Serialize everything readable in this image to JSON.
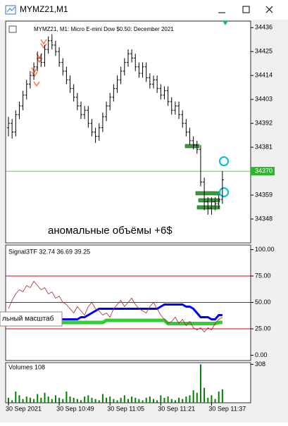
{
  "window_title": "MYMZ21,M1",
  "tooltip": "льный масштаб",
  "chart_data": [
    {
      "type": "ohlc",
      "title": "MYMZ21, M1:  Micro E-mini Dow $0.50: December 2021",
      "annotation": "аномальные объёмы +6$",
      "color": "#000000",
      "categories": [
        "30 Sep 2021",
        null,
        null,
        null,
        null,
        null,
        null,
        null,
        null,
        null,
        null,
        null,
        null,
        null,
        "30 Sep 10:49",
        null,
        null,
        null,
        null,
        null,
        null,
        null,
        null,
        null,
        null,
        null,
        null,
        null,
        "30 Sep 11:05",
        null,
        null,
        null,
        null,
        null,
        null,
        null,
        null,
        null,
        null,
        null,
        null,
        null,
        "30 Sep 11:21",
        null,
        null,
        null,
        null,
        null,
        null,
        null,
        null,
        null,
        null,
        null,
        null,
        null,
        "30 Sep 11:37",
        null,
        null,
        null
      ],
      "open": [
        34390,
        34392,
        34388,
        34396,
        34400,
        34405,
        34410,
        34414,
        34418,
        34422,
        34420,
        34426,
        34430,
        34428,
        34425,
        34420,
        34416,
        34412,
        34408,
        34404,
        34400,
        34396,
        34398,
        34392,
        34388,
        34386,
        34390,
        34395,
        34400,
        34404,
        34408,
        34412,
        34416,
        34420,
        34424,
        34422,
        34418,
        34415,
        34418,
        34413,
        34410,
        34412,
        34408,
        34405,
        34407,
        34402,
        34398,
        34400,
        34396,
        34392,
        34388,
        34384,
        34382,
        34380,
        34365,
        34356,
        34353,
        34356,
        34355,
        34357
      ],
      "high": [
        34395,
        34394,
        34398,
        34402,
        34407,
        34412,
        34416,
        34420,
        34425,
        34424,
        34428,
        34432,
        34433,
        34430,
        34427,
        34422,
        34418,
        34414,
        34410,
        34406,
        34402,
        34400,
        34400,
        34394,
        34390,
        34392,
        34397,
        34402,
        34406,
        34410,
        34414,
        34418,
        34422,
        34426,
        34426,
        34424,
        34420,
        34420,
        34420,
        34415,
        34414,
        34414,
        34410,
        34409,
        34409,
        34404,
        34402,
        34402,
        34398,
        34394,
        34390,
        34386,
        34384,
        34382,
        34367,
        34358,
        34358,
        34358,
        34359,
        34370
      ],
      "low": [
        34386,
        34385,
        34386,
        34394,
        34398,
        34403,
        34408,
        34412,
        34416,
        34418,
        34418,
        34424,
        34426,
        34423,
        34418,
        34414,
        34410,
        34406,
        34402,
        34398,
        34394,
        34394,
        34390,
        34386,
        34383,
        34384,
        34388,
        34393,
        34398,
        34402,
        34406,
        34410,
        34414,
        34418,
        34420,
        34416,
        34413,
        34413,
        34411,
        34408,
        34408,
        34406,
        34403,
        34403,
        34400,
        34396,
        34396,
        34394,
        34390,
        34386,
        34382,
        34380,
        34378,
        34363,
        34352,
        34350,
        34350,
        34352,
        34353,
        34355
      ],
      "close": [
        34392,
        34388,
        34396,
        34400,
        34405,
        34410,
        34414,
        34418,
        34422,
        34420,
        34426,
        34430,
        34428,
        34425,
        34420,
        34416,
        34412,
        34408,
        34404,
        34400,
        34396,
        34398,
        34392,
        34388,
        34386,
        34390,
        34395,
        34400,
        34404,
        34408,
        34412,
        34416,
        34420,
        34424,
        34422,
        34418,
        34415,
        34418,
        34413,
        34410,
        34412,
        34408,
        34405,
        34407,
        34402,
        34398,
        34400,
        34396,
        34392,
        34388,
        34384,
        34382,
        34380,
        34365,
        34356,
        34353,
        34356,
        34355,
        34357,
        34366
      ],
      "ylim": [
        34337,
        34439
      ],
      "yticks": [
        34436,
        34425,
        34414,
        34403,
        34392,
        34381,
        34359,
        34348
      ],
      "current_price": 34370,
      "current_price_color": "#2db52d"
    },
    {
      "type": "line",
      "title": "Signal3TF 32.74 36.69 39.25",
      "series": [
        {
          "color": "#0000ff",
          "width": 3,
          "values": [
            33,
            34,
            34,
            34,
            34,
            34,
            34,
            34,
            34,
            34,
            34,
            34,
            34,
            34,
            34,
            34,
            34,
            34,
            34,
            34,
            36,
            36,
            38,
            40,
            42,
            44,
            44,
            44,
            44,
            44,
            44,
            44,
            44,
            44,
            44,
            44,
            44,
            44,
            44,
            44,
            44,
            44,
            46,
            48,
            48,
            48,
            48,
            48,
            48,
            46,
            46,
            44,
            40,
            36,
            36,
            36,
            34,
            34,
            38,
            38
          ]
        },
        {
          "color": "#32cd32",
          "width": 5,
          "values": [
            30,
            30,
            30,
            32,
            33,
            33,
            33,
            33,
            33,
            33,
            32,
            31,
            31,
            31,
            31,
            31,
            31,
            31,
            31,
            31,
            31,
            31,
            31,
            31,
            31,
            31,
            31,
            33,
            33,
            33,
            33,
            33,
            33,
            33,
            33,
            33,
            33,
            33,
            33,
            33,
            33,
            33,
            33,
            33,
            30,
            30,
            30,
            30,
            30,
            30,
            30,
            30,
            30,
            30,
            30,
            30,
            30,
            30,
            31,
            31
          ]
        },
        {
          "color": "#a52a2a",
          "width": 0.8,
          "values": [
            44,
            52,
            58,
            62,
            60,
            66,
            64,
            70,
            66,
            62,
            64,
            58,
            60,
            54,
            56,
            50,
            48,
            44,
            40,
            46,
            42,
            38,
            46,
            50,
            44,
            42,
            38,
            40,
            36,
            44,
            48,
            52,
            46,
            50,
            54,
            48,
            44,
            42,
            40,
            46,
            50,
            44,
            38,
            34,
            30,
            32,
            36,
            30,
            34,
            28,
            32,
            26,
            24,
            26,
            22,
            26,
            24,
            30,
            34,
            36
          ]
        }
      ],
      "levels": [
        75,
        50,
        25
      ],
      "level_color": "#e00000",
      "ylim": [
        -5,
        103
      ],
      "yticks": [
        {
          "value": 100,
          "label": "100.00"
        },
        {
          "value": 75,
          "label": "75.00"
        },
        {
          "value": 50,
          "label": "50.00"
        },
        {
          "value": 25,
          "label": "25.00"
        },
        {
          "value": 0,
          "label": "0.00"
        }
      ]
    },
    {
      "type": "bar",
      "title": "Volumes 108",
      "color": "#008000",
      "values": [
        40,
        20,
        90,
        60,
        30,
        50,
        40,
        30,
        70,
        40,
        80,
        50,
        30,
        60,
        40,
        30,
        90,
        50,
        40,
        30,
        20,
        50,
        60,
        40,
        30,
        20,
        70,
        40,
        50,
        30,
        20,
        40,
        60,
        30,
        50,
        40,
        30,
        20,
        40,
        50,
        30,
        20,
        60,
        40,
        50,
        30,
        20,
        40,
        30,
        50,
        60,
        100,
        80,
        308,
        120,
        40,
        60,
        30,
        90,
        108
      ],
      "ylim": [
        0,
        316
      ],
      "yticks": [
        308
      ]
    }
  ]
}
